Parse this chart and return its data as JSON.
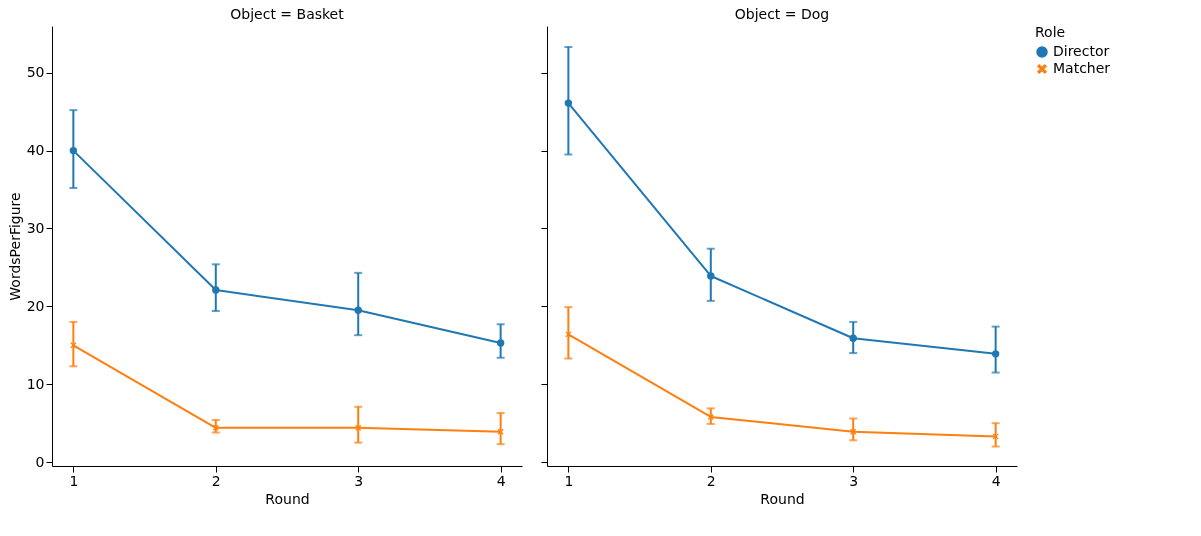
{
  "chart_data": [
    {
      "type": "line",
      "title": "Object = Basket",
      "xlabel": "Round",
      "ylabel": "WordsPerFigure",
      "x": [
        1,
        2,
        3,
        4
      ],
      "xlim": [
        0.85,
        4.15
      ],
      "xticks": [
        1,
        2,
        3,
        4
      ],
      "ylim": [
        -0.5,
        56
      ],
      "yticks": [
        0,
        10,
        20,
        30,
        40,
        50
      ],
      "grid": false,
      "legend": "right",
      "series": [
        {
          "name": "Director",
          "color": "#1f77b4",
          "marker": "circle",
          "values": [
            40.0,
            22.1,
            19.5,
            15.3
          ],
          "errors": [
            [
              35.2,
              45.2
            ],
            [
              19.4,
              25.4
            ],
            [
              16.3,
              24.3
            ],
            [
              13.4,
              17.7
            ]
          ]
        },
        {
          "name": "Matcher",
          "color": "#ff7f0e",
          "marker": "cross",
          "values": [
            15.0,
            4.4,
            4.4,
            3.9
          ],
          "errors": [
            [
              12.3,
              18.0
            ],
            [
              3.8,
              5.4
            ],
            [
              2.5,
              7.1
            ],
            [
              2.3,
              6.3
            ]
          ]
        }
      ]
    },
    {
      "type": "line",
      "title": "Object = Dog",
      "xlabel": "Round",
      "x": [
        1,
        2,
        3,
        4
      ],
      "xlim": [
        0.85,
        4.15
      ],
      "xticks": [
        1,
        2,
        3,
        4
      ],
      "ylim": [
        -0.5,
        56
      ],
      "yticks": [
        0,
        10,
        20,
        30,
        40,
        50
      ],
      "grid": false,
      "tick_labels": "x",
      "legend": "right",
      "legend_title": "Role",
      "series": [
        {
          "name": "Director",
          "color": "#1f77b4",
          "marker": "circle",
          "values": [
            46.1,
            23.9,
            15.9,
            13.9
          ],
          "errors": [
            [
              39.5,
              53.3
            ],
            [
              20.7,
              27.4
            ],
            [
              14.0,
              18.0
            ],
            [
              11.5,
              17.4
            ]
          ]
        },
        {
          "name": "Matcher",
          "color": "#ff7f0e",
          "marker": "cross",
          "values": [
            16.4,
            5.8,
            3.9,
            3.3
          ],
          "errors": [
            [
              13.3,
              19.9
            ],
            [
              4.9,
              6.9
            ],
            [
              2.8,
              5.6
            ],
            [
              2.0,
              5.0
            ]
          ]
        }
      ]
    }
  ]
}
